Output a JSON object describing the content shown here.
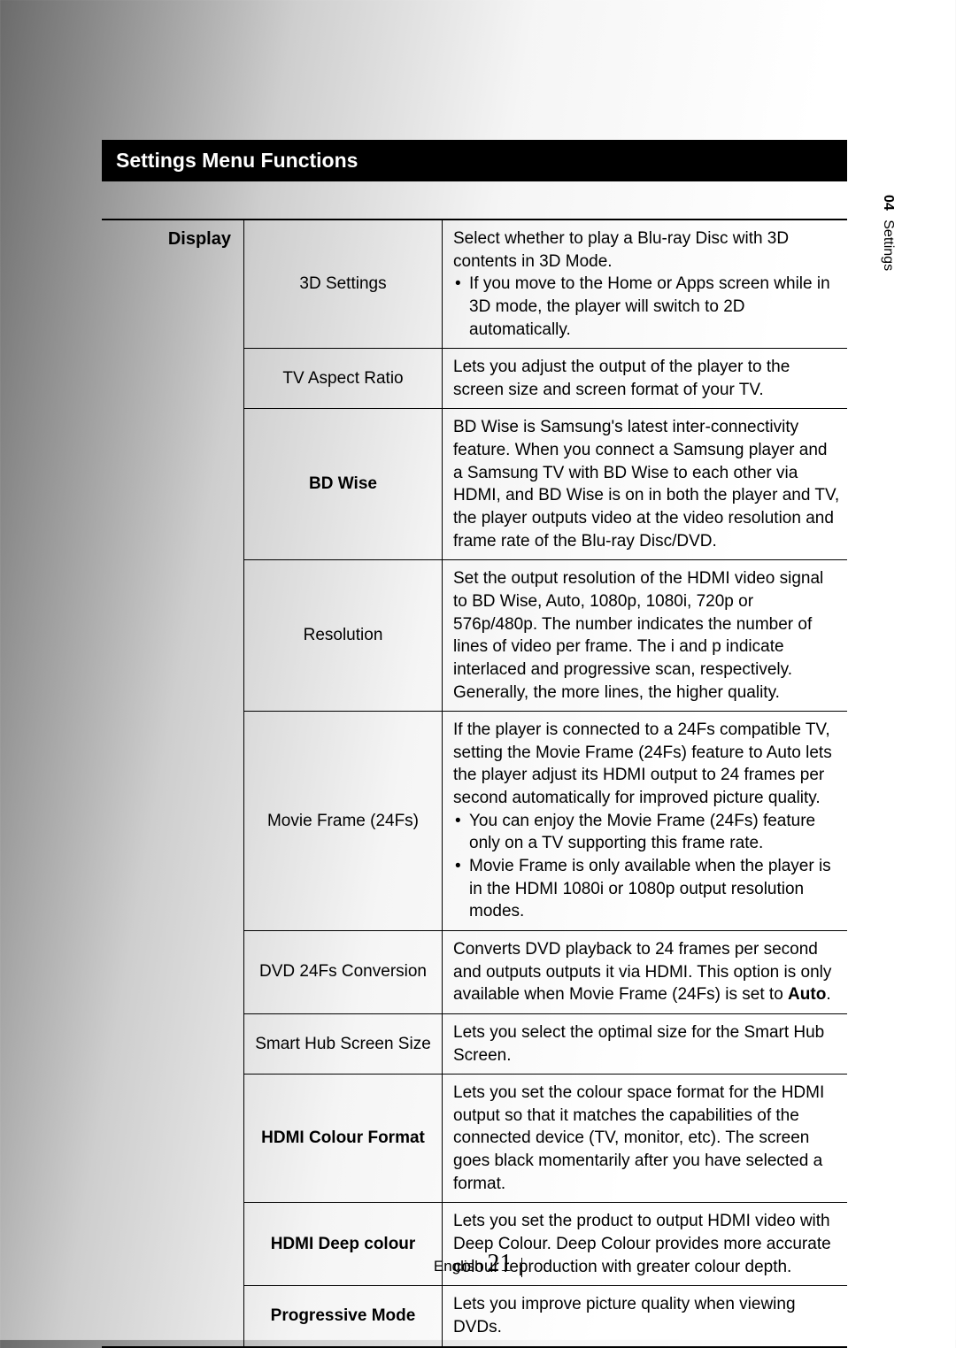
{
  "header": {
    "title": "Settings Menu Functions"
  },
  "side": {
    "chapter": "04",
    "label": "Settings"
  },
  "footer": {
    "lang": "English",
    "page": "21"
  },
  "category": "Display",
  "rows": [
    {
      "setting": "3D Settings",
      "bold": false,
      "desc_main": "Select whether to play a Blu-ray Disc with 3D contents in 3D Mode.",
      "bullets": [
        "If you move to the Home or Apps screen while in 3D mode, the player will switch to 2D automatically."
      ]
    },
    {
      "setting": "TV Aspect Ratio",
      "bold": false,
      "desc_main": "Lets you adjust the output of the player to the screen size and screen format of your TV.",
      "bullets": []
    },
    {
      "setting": "BD Wise",
      "bold": true,
      "desc_main": "BD Wise is Samsung's latest inter-connectivity feature. When you connect a Samsung player and a Samsung TV with BD Wise to each other via HDMI, and BD Wise is on in both the player and TV, the player outputs video at the video resolution and frame rate of the Blu-ray Disc/DVD.",
      "bullets": []
    },
    {
      "setting": "Resolution",
      "bold": false,
      "desc_main": "Set the output resolution of the HDMI video signal to BD Wise, Auto, 1080p, 1080i, 720p or 576p/480p. The number indicates the number of lines of video per frame. The i and p indicate interlaced and progressive scan, respectively. Generally, the more lines, the higher quality.",
      "bullets": []
    },
    {
      "setting": "Movie Frame (24Fs)",
      "bold": false,
      "desc_main": "If the player is connected to a 24Fs compatible TV, setting the Movie Frame (24Fs) feature to Auto lets the player adjust its HDMI output to 24 frames per second automatically for improved picture quality.",
      "bullets": [
        "You can enjoy the Movie Frame (24Fs) feature only on a TV supporting this frame rate.",
        "Movie Frame is only available when the player is in the HDMI 1080i or 1080p output resolution modes."
      ]
    },
    {
      "setting": "DVD 24Fs Conversion",
      "bold": false,
      "desc_html": "Converts DVD playback to 24 frames per second and outputs outputs it via HDMI. This option is only available when Movie Frame (24Fs) is set to <b>Auto</b>.",
      "bullets": []
    },
    {
      "setting": "Smart Hub Screen Size",
      "bold": false,
      "desc_main": "Lets you select the optimal size for the Smart Hub Screen.",
      "bullets": []
    },
    {
      "setting": "HDMI Colour Format",
      "bold": true,
      "desc_main": "Lets you set the colour space format for the HDMI output so that it matches the capabilities of the connected device (TV, monitor, etc). The screen goes black momentarily after you have selected a format.",
      "bullets": []
    },
    {
      "setting": "HDMI Deep colour",
      "bold": true,
      "desc_main": "Lets you set the product to output HDMI video with Deep Colour. Deep Colour provides more accurate colour reproduction with greater colour depth.",
      "bullets": []
    },
    {
      "setting": "Progressive Mode",
      "bold": true,
      "desc_main": "Lets you improve picture quality when viewing DVDs.",
      "bullets": []
    }
  ]
}
